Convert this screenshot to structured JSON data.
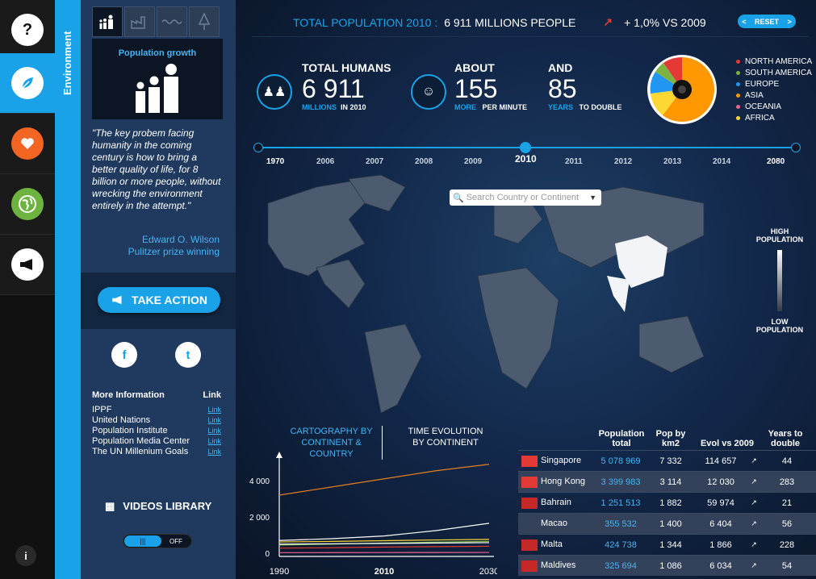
{
  "nav": {
    "help": "?",
    "info": "i"
  },
  "sidebar_tab": "Environment",
  "population_growth": "Population growth",
  "quote": "\"The key probem facing humanity in the coming century is how to bring a better quality of life, for 8 billion or more people, without wrecking the environment entirely in the attempt.\"",
  "author": [
    "Edward O. Wilson",
    "Pulitzer prize winning"
  ],
  "take_action": "TAKE ACTION",
  "social": {
    "facebook": "f",
    "twitter": "t"
  },
  "more_info": {
    "heading": "More Information",
    "link_heading": "Link",
    "items": [
      "IPPF",
      "United Nations",
      "Population Institute",
      "Population Media Center",
      "The UN Millenium Goals"
    ],
    "link_text": "Link"
  },
  "videos_library": "VIDEOS LIBRARY",
  "toggle": {
    "on": "|||",
    "off": "OFF"
  },
  "top": {
    "label": "TOTAL POPULATION 2010 :",
    "value": "6 911 MILLIONS PEOPLE",
    "change": "+ 1,0% VS 2009",
    "reset": "RESET",
    "prev": "<",
    "next": ">"
  },
  "stats": {
    "humans": {
      "label": "TOTAL HUMANS",
      "value": "6 911",
      "unit": "MILLIONS",
      "note": "IN 2010"
    },
    "about": {
      "label": "ABOUT",
      "value": "155",
      "unit": "MORE",
      "note": "PER MINUTE"
    },
    "and": {
      "label": "AND",
      "value": "85",
      "unit": "YEARS",
      "note": "TO DOUBLE"
    }
  },
  "legend": [
    {
      "name": "NORTH AMERICA",
      "color": "#e53935"
    },
    {
      "name": "SOUTH AMERICA",
      "color": "#7cb342"
    },
    {
      "name": "EUROPE",
      "color": "#2196f3"
    },
    {
      "name": "ASIA",
      "color": "#ff9800"
    },
    {
      "name": "OCEANIA",
      "color": "#f06292"
    },
    {
      "name": "AFRICA",
      "color": "#fdd835"
    }
  ],
  "years": [
    "1970",
    "2006",
    "2007",
    "2008",
    "2009",
    "2010",
    "2011",
    "2012",
    "2013",
    "2014",
    "2080"
  ],
  "search_placeholder": "Search Country or Continent",
  "scale": {
    "high": "HIGH POPULATION",
    "low": "LOW POPULATION"
  },
  "chart_tabs": {
    "a": "CARTOGRAPHY BY CONTINENT & COUNTRY",
    "b": "TIME EVOLUTION BY CONTINENT"
  },
  "chart_data": {
    "type": "line",
    "x": [
      1990,
      2000,
      2010,
      2020,
      2030
    ],
    "ylabels": [
      "4 000",
      "2 000",
      "0"
    ],
    "xlabels": [
      "1990",
      "2010",
      "2030"
    ],
    "series": [
      {
        "color": "#e67e22",
        "values": [
          3200,
          3650,
          4100,
          4550,
          4900
        ]
      },
      {
        "color": "#ffffff",
        "values": [
          700,
          800,
          950,
          1250,
          1650
        ]
      },
      {
        "color": "#fdd835",
        "values": [
          620,
          650,
          690,
          730,
          760
        ]
      },
      {
        "color": "#7cb342",
        "values": [
          450,
          500,
          560,
          610,
          650
        ]
      },
      {
        "color": "#ffffff",
        "values": [
          500,
          520,
          540,
          560,
          580
        ]
      },
      {
        "color": "#e53935",
        "values": [
          280,
          300,
          340,
          360,
          380
        ]
      },
      {
        "color": "#f06292",
        "values": [
          30,
          33,
          36,
          39,
          42
        ]
      }
    ]
  },
  "table": {
    "headers": [
      "Population total",
      "Pop by km2",
      "Evol vs 2009",
      "Years to double"
    ],
    "rows": [
      {
        "country": "Singapore",
        "pop": "5 078 969",
        "km2": "7 332",
        "evol": "114 657",
        "years": "44"
      },
      {
        "country": "Hong Kong",
        "pop": "3 399 983",
        "km2": "3 114",
        "evol": "12 030",
        "years": "283"
      },
      {
        "country": "Bahrain",
        "pop": "1 251 513",
        "km2": "1 882",
        "evol": "59 974",
        "years": "21"
      },
      {
        "country": "Macao",
        "pop": "355 532",
        "km2": "1 400",
        "evol": "6 404",
        "years": "56"
      },
      {
        "country": "Malta",
        "pop": "424 738",
        "km2": "1 344",
        "evol": "1 866",
        "years": "228"
      },
      {
        "country": "Maldives",
        "pop": "325 694",
        "km2": "1 086",
        "evol": "6 034",
        "years": "54"
      }
    ]
  }
}
